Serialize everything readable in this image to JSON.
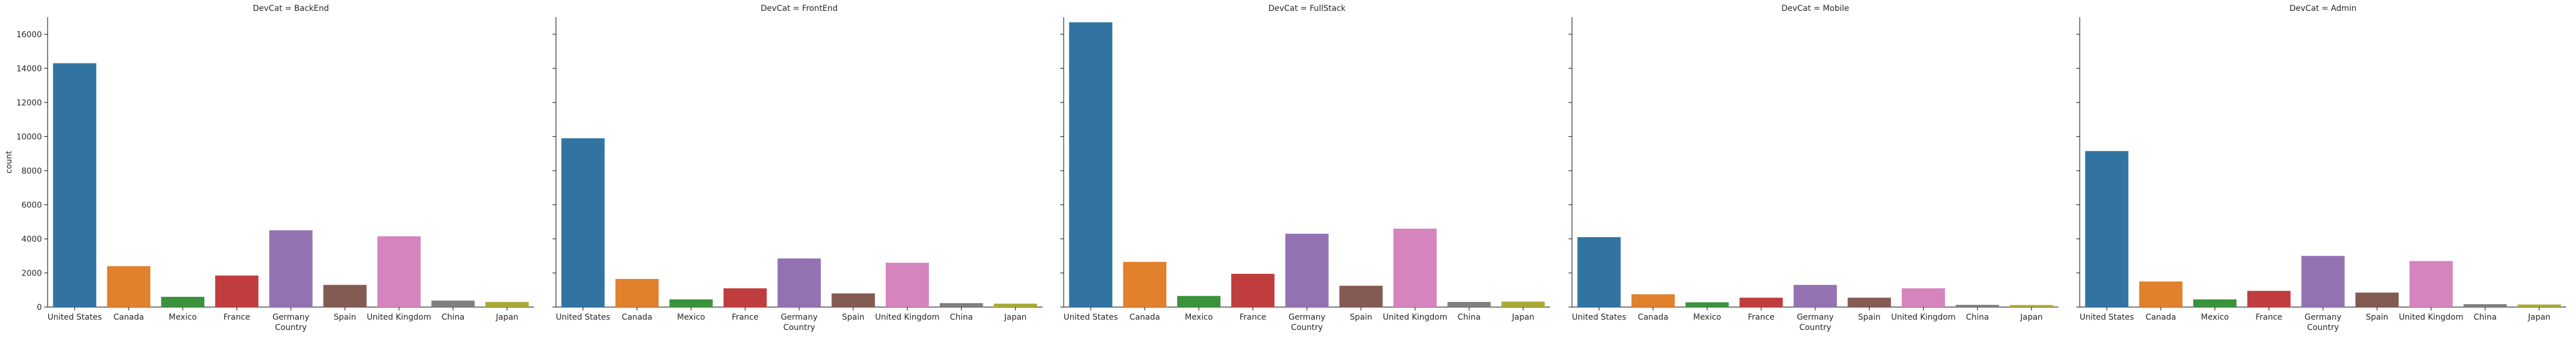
{
  "chart_data": {
    "type": "bar",
    "ylabel": "count",
    "xlabel": "Country",
    "ylim": [
      0,
      17000
    ],
    "yticks": [
      0,
      2000,
      4000,
      6000,
      8000,
      10000,
      12000,
      14000,
      16000
    ],
    "categories": [
      "United States",
      "Canada",
      "Mexico",
      "France",
      "Germany",
      "Spain",
      "United Kingdom",
      "China",
      "Japan"
    ],
    "colors": [
      "#3274a1",
      "#e1812c",
      "#3a923a",
      "#c03d3e",
      "#9372b2",
      "#845b53",
      "#d684bd",
      "#7f7f7f",
      "#a9aa35"
    ],
    "panels": [
      {
        "title": "DevCat = BackEnd",
        "values": [
          14300,
          2400,
          600,
          1850,
          4500,
          1300,
          4150,
          380,
          300
        ]
      },
      {
        "title": "DevCat = FrontEnd",
        "values": [
          9900,
          1650,
          450,
          1100,
          2850,
          800,
          2600,
          230,
          200
        ]
      },
      {
        "title": "DevCat = FullStack",
        "values": [
          16700,
          2650,
          650,
          1950,
          4300,
          1250,
          4600,
          300,
          320
        ]
      },
      {
        "title": "DevCat = Mobile",
        "values": [
          4100,
          750,
          280,
          550,
          1300,
          550,
          1100,
          130,
          120
        ]
      },
      {
        "title": "DevCat = Admin",
        "values": [
          9150,
          1500,
          450,
          950,
          3000,
          850,
          2700,
          170,
          150
        ]
      }
    ]
  }
}
